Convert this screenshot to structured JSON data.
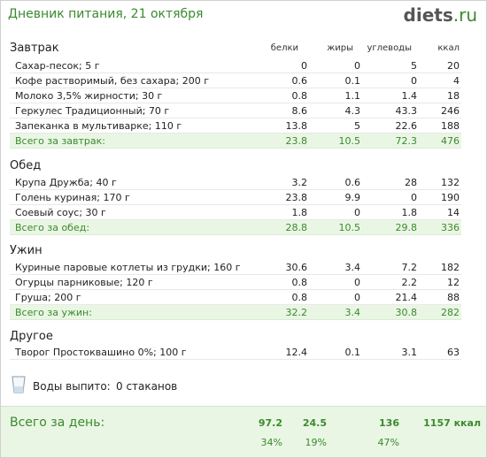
{
  "header": {
    "title": "Дневник питания, 21 октября",
    "brand_name": "diets",
    "brand_tld": ".ru"
  },
  "columns": {
    "protein": "белки",
    "fat": "жиры",
    "carbs": "углеводы",
    "kcal": "ккал"
  },
  "sections": [
    {
      "title": "Завтрак",
      "items": [
        {
          "name": "Сахар-песок; 5 г",
          "p": "0",
          "f": "0",
          "c": "5",
          "k": "20"
        },
        {
          "name": "Кофе растворимый, без сахара; 200 г",
          "p": "0.6",
          "f": "0.1",
          "c": "0",
          "k": "4"
        },
        {
          "name": "Молоко 3,5% жирности; 30 г",
          "p": "0.8",
          "f": "1.1",
          "c": "1.4",
          "k": "18"
        },
        {
          "name": "Геркулес Традиционный; 70 г",
          "p": "8.6",
          "f": "4.3",
          "c": "43.3",
          "k": "246"
        },
        {
          "name": "Запеканка в мультиварке; 110 г",
          "p": "13.8",
          "f": "5",
          "c": "22.6",
          "k": "188"
        }
      ],
      "total": {
        "name": "Всего за завтрак:",
        "p": "23.8",
        "f": "10.5",
        "c": "72.3",
        "k": "476"
      }
    },
    {
      "title": "Обед",
      "items": [
        {
          "name": "Крупа Дружба; 40 г",
          "p": "3.2",
          "f": "0.6",
          "c": "28",
          "k": "132"
        },
        {
          "name": "Голень куриная; 170 г",
          "p": "23.8",
          "f": "9.9",
          "c": "0",
          "k": "190"
        },
        {
          "name": "Соевый соус; 30 г",
          "p": "1.8",
          "f": "0",
          "c": "1.8",
          "k": "14"
        }
      ],
      "total": {
        "name": "Всего за обед:",
        "p": "28.8",
        "f": "10.5",
        "c": "29.8",
        "k": "336"
      }
    },
    {
      "title": "Ужин",
      "items": [
        {
          "name": "Куриные паровые котлеты из грудки; 160 г",
          "p": "30.6",
          "f": "3.4",
          "c": "7.2",
          "k": "182"
        },
        {
          "name": "Огурцы парниковые; 120 г",
          "p": "0.8",
          "f": "0",
          "c": "2.2",
          "k": "12"
        },
        {
          "name": "Груша; 200 г",
          "p": "0.8",
          "f": "0",
          "c": "21.4",
          "k": "88"
        }
      ],
      "total": {
        "name": "Всего за ужин:",
        "p": "32.2",
        "f": "3.4",
        "c": "30.8",
        "k": "282"
      }
    },
    {
      "title": "Другое",
      "items": [
        {
          "name": "Творог Простоквашино 0%; 100 г",
          "p": "12.4",
          "f": "0.1",
          "c": "3.1",
          "k": "63"
        }
      ]
    }
  ],
  "water": {
    "label": "Воды выпито:",
    "value": "0 стаканов",
    "icon": "glass-icon"
  },
  "day_total": {
    "label": "Всего за день:",
    "p": "97.2",
    "f": "24.5",
    "c": "136",
    "k": "1157 ккал",
    "p_pct": "34%",
    "f_pct": "19%",
    "c_pct": "47%"
  },
  "colors": {
    "accent_green": "#3a8a2e",
    "total_bg": "#eaf6e4"
  }
}
